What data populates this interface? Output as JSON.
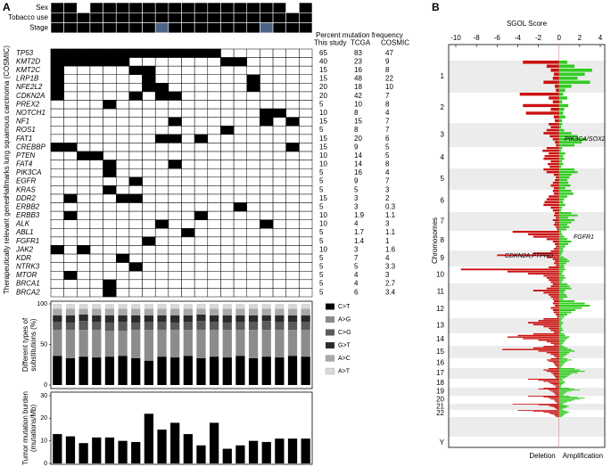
{
  "panel_a": {
    "label": "A",
    "tracks": [
      {
        "name": "Sex",
        "colors": [
          "#000",
          "#000",
          "#fff",
          "#000",
          "#000",
          "#000",
          "#000",
          "#000",
          "#000",
          "#000",
          "#000",
          "#000",
          "#000",
          "#000",
          "#000",
          "#000",
          "#000",
          "#000",
          "#fff",
          "#000"
        ]
      },
      {
        "name": "Tobacco use",
        "colors": [
          "#000",
          "#000",
          "#000",
          "#000",
          "#000",
          "#000",
          "#000",
          "#000",
          "#000",
          "#000",
          "#000",
          "#000",
          "#000",
          "#000",
          "#000",
          "#000",
          "#000",
          "#000",
          "#000",
          "#000"
        ]
      },
      {
        "name": "Stage",
        "colors": [
          "#000",
          "#000",
          "#000",
          "#000",
          "#000",
          "#000",
          "#000",
          "#000",
          "#4d6488",
          "#000",
          "#000",
          "#000",
          "#000",
          "#000",
          "#000",
          "#000",
          "#4d6488",
          "#000",
          "#000",
          "#000"
        ]
      }
    ],
    "freq_header": "Percent mutation frequency",
    "columns": [
      "This study",
      "TCGA",
      "COSMIC"
    ],
    "groups": [
      {
        "label": "Hallmarks lung squamous carcinoma (COSMIC)",
        "genes": [
          {
            "name": "TP53",
            "this_study": 65,
            "tcga": 83,
            "cosmic": 47,
            "mutated": [
              0,
              1,
              2,
              3,
              4,
              5,
              6,
              7,
              8,
              9,
              10,
              11,
              12
            ]
          },
          {
            "name": "KMT2D",
            "this_study": 40,
            "tcga": 23,
            "cosmic": 9,
            "mutated": [
              0,
              1,
              2,
              3,
              4,
              5,
              13,
              14
            ]
          },
          {
            "name": "KMT2C",
            "this_study": 15,
            "tcga": 16,
            "cosmic": 8,
            "mutated": [
              0,
              6,
              7
            ]
          },
          {
            "name": "LRP1B",
            "this_study": 15,
            "tcga": 48,
            "cosmic": 22,
            "mutated": [
              0,
              7,
              15
            ]
          },
          {
            "name": "NFE2L2",
            "this_study": 20,
            "tcga": 18,
            "cosmic": 10,
            "mutated": [
              0,
              7,
              8,
              15
            ]
          },
          {
            "name": "CDKN2A",
            "this_study": 20,
            "tcga": 42,
            "cosmic": 7,
            "mutated": [
              0,
              6,
              8,
              9
            ]
          },
          {
            "name": "PREX2",
            "this_study": 5,
            "tcga": 10,
            "cosmic": 8,
            "mutated": [
              4
            ]
          },
          {
            "name": "NOTCH1",
            "this_study": 10,
            "tcga": 8,
            "cosmic": 4,
            "mutated": [
              16,
              17
            ]
          },
          {
            "name": "NF1",
            "this_study": 15,
            "tcga": 15,
            "cosmic": 7,
            "mutated": [
              9,
              16,
              18
            ]
          },
          {
            "name": "ROS1",
            "this_study": 5,
            "tcga": 8,
            "cosmic": 7,
            "mutated": [
              13
            ]
          },
          {
            "name": "FAT1",
            "this_study": 15,
            "tcga": 20,
            "cosmic": 6,
            "mutated": [
              8,
              9,
              11
            ]
          },
          {
            "name": "CREBBP",
            "this_study": 15,
            "tcga": 9,
            "cosmic": 5,
            "mutated": [
              0,
              1,
              18
            ]
          },
          {
            "name": "PTEN",
            "this_study": 10,
            "tcga": 14,
            "cosmic": 5,
            "mutated": [
              2,
              3
            ]
          },
          {
            "name": "FAT4",
            "this_study": 10,
            "tcga": 14,
            "cosmic": 8,
            "mutated": [
              4,
              9
            ]
          },
          {
            "name": "PIK3CA",
            "this_study": 5,
            "tcga": 16,
            "cosmic": 4,
            "mutated": [
              4
            ]
          },
          {
            "name": "EGFR",
            "this_study": 5,
            "tcga": 9,
            "cosmic": 7,
            "mutated": [
              6
            ]
          },
          {
            "name": "KRAS",
            "this_study": 5,
            "tcga": 5,
            "cosmic": 3,
            "mutated": [
              4
            ]
          }
        ]
      },
      {
        "label": "Therapeutically relevant genes",
        "genes": [
          {
            "name": "DDR2",
            "this_study": 15,
            "tcga": 3,
            "cosmic": 2,
            "mutated": [
              1,
              5,
              6
            ]
          },
          {
            "name": "ERBB2",
            "this_study": 5,
            "tcga": 3,
            "cosmic": 0.3,
            "mutated": [
              14
            ]
          },
          {
            "name": "ERBB3",
            "this_study": 10,
            "tcga": 1.9,
            "cosmic": 1.1,
            "mutated": [
              1,
              11
            ]
          },
          {
            "name": "ALK",
            "this_study": 10,
            "tcga": 4,
            "cosmic": 3,
            "mutated": [
              8,
              16
            ]
          },
          {
            "name": "ABL1",
            "this_study": 5,
            "tcga": 1.7,
            "cosmic": 1.1,
            "mutated": [
              10
            ]
          },
          {
            "name": "FGFR1",
            "this_study": 5,
            "tcga": 1.4,
            "cosmic": 1,
            "mutated": [
              7
            ]
          },
          {
            "name": "JAK2",
            "this_study": 10,
            "tcga": 3,
            "cosmic": 1.6,
            "mutated": [
              0,
              2
            ]
          },
          {
            "name": "KDR",
            "this_study": 5,
            "tcga": 7,
            "cosmic": 4,
            "mutated": [
              5
            ]
          },
          {
            "name": "NTRK3",
            "this_study": 5,
            "tcga": 5,
            "cosmic": 3.3,
            "mutated": [
              6
            ]
          },
          {
            "name": "MTOR",
            "this_study": 5,
            "tcga": 4,
            "cosmic": 3,
            "mutated": [
              1
            ]
          },
          {
            "name": "BRCA1",
            "this_study": 5,
            "tcga": 4,
            "cosmic": 2.7,
            "mutated": [
              4
            ]
          },
          {
            "name": "BRCA2",
            "this_study": 5,
            "tcga": 6,
            "cosmic": 3.4,
            "mutated": [
              4
            ]
          }
        ]
      }
    ],
    "substitutions": {
      "axis_label": [
        "Different types of",
        "substitutions (%)"
      ],
      "ylim": [
        0,
        100
      ],
      "yticks": [
        0,
        50,
        100
      ],
      "series": [
        {
          "name": "C>T",
          "color": "#000000",
          "values": [
            36,
            33,
            35,
            34,
            35,
            36,
            33,
            30,
            35,
            34,
            36,
            33,
            35,
            34,
            36,
            33,
            35,
            34,
            36,
            35
          ]
        },
        {
          "name": "A>G",
          "color": "#8c8c8c",
          "values": [
            32,
            35,
            33,
            34,
            32,
            31,
            35,
            38,
            33,
            34,
            32,
            35,
            33,
            34,
            32,
            35,
            33,
            34,
            32,
            33
          ]
        },
        {
          "name": "C>G",
          "color": "#5a5a5a",
          "values": [
            10,
            9,
            11,
            10,
            10,
            11,
            9,
            10,
            10,
            9,
            10,
            11,
            10,
            9,
            10,
            10,
            11,
            10,
            10,
            10
          ]
        },
        {
          "name": "G>T",
          "color": "#2a2a2a",
          "values": [
            8,
            9,
            8,
            8,
            9,
            8,
            9,
            8,
            8,
            9,
            8,
            8,
            8,
            9,
            8,
            8,
            7,
            8,
            8,
            8
          ]
        },
        {
          "name": "A>C",
          "color": "#a8a8a8",
          "values": [
            8,
            8,
            7,
            8,
            8,
            8,
            8,
            8,
            8,
            8,
            8,
            7,
            8,
            8,
            8,
            8,
            8,
            8,
            8,
            8
          ]
        },
        {
          "name": "A>T",
          "color": "#d8d8d8",
          "values": [
            6,
            6,
            6,
            6,
            6,
            6,
            6,
            6,
            6,
            6,
            6,
            6,
            6,
            6,
            6,
            6,
            6,
            6,
            6,
            6
          ]
        }
      ]
    },
    "tmb": {
      "axis_label": [
        "Tumor mutation burden",
        "(mutations/Mb)"
      ],
      "ylim": [
        0,
        30
      ],
      "yticks": [
        0,
        10,
        20,
        30
      ],
      "color": "#000000",
      "values": [
        13,
        12,
        9,
        11.5,
        11.5,
        10,
        9.5,
        22,
        15,
        18,
        13,
        8,
        18,
        6.5,
        8,
        10,
        9.5,
        11,
        11,
        11
      ]
    }
  },
  "panel_b": {
    "label": "B",
    "x_label": "SGOL Score",
    "xlim": [
      -10,
      4
    ],
    "xticks": [
      -10,
      -8,
      -6,
      -4,
      -2,
      0,
      2,
      4
    ],
    "y_label": "Chromosomes",
    "legend": [
      "Deletion",
      "Amplification"
    ],
    "colors": {
      "deletion": "#cc1111",
      "amplification": "#33cc22"
    },
    "annotations": [
      "PIK3CA/SOX2",
      "FGFR1",
      "CDKN2A,PTPRD"
    ],
    "chromosomes": [
      {
        "label": "1",
        "deletion": [
          -3.5,
          -1.2,
          -0.8,
          -0.5,
          -0.6,
          -1.5,
          -0.4,
          -0.3
        ],
        "amplification": [
          0.8,
          1.5,
          3.2,
          2.5,
          1.8,
          3.0,
          1.2,
          0.6
        ]
      },
      {
        "label": "2",
        "deletion": [
          -3.8,
          -1,
          -0.6,
          -3.5,
          -0.8,
          -3.2,
          -0.5,
          -0.4
        ],
        "amplification": [
          0.4,
          0.8,
          0.3,
          0.9,
          0.5,
          0.4,
          0.6,
          0.3
        ]
      },
      {
        "label": "3",
        "deletion": [
          -1,
          -0.8,
          -1.2,
          -1.5,
          -0.9,
          -0.6,
          -0.4,
          -0.3
        ],
        "amplification": [
          0.3,
          0.2,
          0.5,
          1.2,
          1.8,
          2.6,
          2.2,
          1.5
        ]
      },
      {
        "label": "4",
        "deletion": [
          -1.2,
          -1.6,
          -1,
          -1.4,
          -1.5,
          -0.8,
          -1.1,
          -0.9
        ],
        "amplification": [
          0.3,
          0.2,
          0.6,
          0.4,
          0.5,
          0.3,
          0.4,
          0.2
        ]
      },
      {
        "label": "5",
        "deletion": [
          -1.5,
          -1.2,
          -0.5,
          -0.3,
          -0.4,
          -0.6,
          -0.8,
          -0.5
        ],
        "amplification": [
          1.5,
          1.8,
          1.2,
          1.0,
          0.8,
          0.9,
          1.1,
          0.6
        ]
      },
      {
        "label": "6",
        "deletion": [
          -0.6,
          -0.5,
          -1,
          -1.2,
          -1.4,
          -1.5,
          -0.8,
          -0.6
        ],
        "amplification": [
          1.2,
          1.4,
          0.8,
          0.5,
          0.4,
          0.6,
          0.3,
          0.2
        ]
      },
      {
        "label": "7",
        "deletion": [
          -0.4,
          -0.5,
          -0.3,
          -0.6,
          -0.4,
          -0.5,
          -0.3,
          -0.2
        ],
        "amplification": [
          1.2,
          1.8,
          0.9,
          1.5,
          1.2,
          0.8,
          1.0,
          0.7
        ]
      },
      {
        "label": "8",
        "deletion": [
          -4.5,
          -3,
          -2.5,
          -1.2,
          -0.6,
          -0.4,
          -0.3,
          -0.5
        ],
        "amplification": [
          0.2,
          0.3,
          0.5,
          0.8,
          1.2,
          0.9,
          0.6,
          0.4
        ]
      },
      {
        "label": "9",
        "deletion": [
          -0.8,
          -2.5,
          -6,
          -1.2,
          -0.6,
          -0.4,
          -0.5,
          -0.3
        ],
        "amplification": [
          0.4,
          0.3,
          0.2,
          0.5,
          0.8,
          1.0,
          0.7,
          0.5
        ]
      },
      {
        "label": "10",
        "deletion": [
          -1,
          -9.5,
          -5,
          -3,
          -1.5,
          -1.2,
          -1,
          -0.8
        ],
        "amplification": [
          0.5,
          0.6,
          0.4,
          0.3,
          0.5,
          0.6,
          0.4,
          0.3
        ]
      },
      {
        "label": "11",
        "deletion": [
          -0.6,
          -0.8,
          -1.2,
          -2.5,
          -1.5,
          -1,
          -0.8,
          -0.6
        ],
        "amplification": [
          0.8,
          1,
          1.2,
          0.6,
          0.5,
          0.7,
          0.8,
          0.4
        ]
      },
      {
        "label": "12",
        "deletion": [
          -0.5,
          -0.6,
          -0.4,
          -0.8,
          -0.6,
          -0.5,
          -0.3,
          -0.2
        ],
        "amplification": [
          1.5,
          2.5,
          3.0,
          2.2,
          1.6,
          1.2,
          0.8,
          0.5
        ]
      },
      {
        "label": "13",
        "deletion": [
          -1.5,
          -2,
          -3,
          -2.5,
          -1.5,
          -1,
          -0.8,
          -0.5
        ],
        "amplification": [
          0.3,
          0.2,
          0.4,
          0.3,
          0.2,
          0.3,
          0.4,
          0.2
        ]
      },
      {
        "label": "14",
        "deletion": [
          -2.5,
          -4,
          -5,
          -3.5,
          -2,
          -1.2,
          -0.8,
          -0.5
        ],
        "amplification": [
          0.5,
          0.6,
          1,
          0.8,
          0.6,
          0.5,
          0.4,
          0.3
        ]
      },
      {
        "label": "15",
        "deletion": [
          -1.5,
          -2.5,
          -5.5,
          -2,
          -1.2,
          -0.8,
          -0.5,
          -0.3
        ],
        "amplification": [
          0.5,
          0.8,
          1.2,
          1.5,
          1,
          0.8,
          0.6,
          0.4
        ]
      },
      {
        "label": "16",
        "deletion": [
          -0.8,
          -1.2,
          -1,
          -0.6,
          -0.5,
          -0.4,
          -0.3,
          -0.2
        ],
        "amplification": [
          0.8,
          1.2,
          0.8,
          0.6,
          0.5,
          0.4,
          0.3,
          0.2
        ]
      },
      {
        "label": "17",
        "deletion": [
          -1,
          -1.5,
          -1.2,
          -0.8,
          -0.6,
          -0.5,
          -0.4,
          -0.3
        ],
        "amplification": [
          1.5,
          2,
          2.5,
          1.8,
          1.2,
          1,
          0.8,
          0.6
        ]
      },
      {
        "label": "18",
        "deletion": [
          -3,
          -2,
          -1.5,
          -1,
          -0.8,
          -0.6,
          -0.4,
          -0.3
        ],
        "amplification": [
          0.3,
          0.4,
          0.5,
          0.6,
          0.4,
          0.3,
          0.2,
          0.2
        ]
      },
      {
        "label": "19",
        "deletion": [
          -1.5,
          -2,
          -1,
          -0.8,
          -0.6,
          -0.5,
          -0.4,
          -0.3
        ],
        "amplification": [
          1,
          1.5,
          2,
          1.2,
          0.8,
          0.6,
          0.5,
          0.4
        ]
      },
      {
        "label": "20",
        "deletion": [
          -3,
          -1.5,
          -1,
          -0.8,
          -0.5,
          -0.4,
          -0.3,
          -0.2
        ],
        "amplification": [
          1,
          1.8,
          2.5,
          2,
          1.5,
          1.2,
          0.8,
          0.5
        ]
      },
      {
        "label": "21",
        "deletion": [
          -4.5,
          -2,
          -1,
          -0.8,
          -0.5,
          -0.4,
          -0.3,
          -0.2
        ],
        "amplification": [
          0.3,
          0.5,
          0.8,
          1,
          0.8,
          0.6,
          0.4,
          0.3
        ]
      },
      {
        "label": "22",
        "deletion": [
          -4,
          -2.5,
          -1.5,
          -1,
          -0.8,
          -0.5,
          -0.4,
          -0.3
        ],
        "amplification": [
          0.5,
          0.8,
          1,
          0.8,
          0.6,
          0.5,
          0.4,
          0.3
        ]
      },
      {
        "label": "Y",
        "deletion": [],
        "amplification": []
      }
    ]
  }
}
